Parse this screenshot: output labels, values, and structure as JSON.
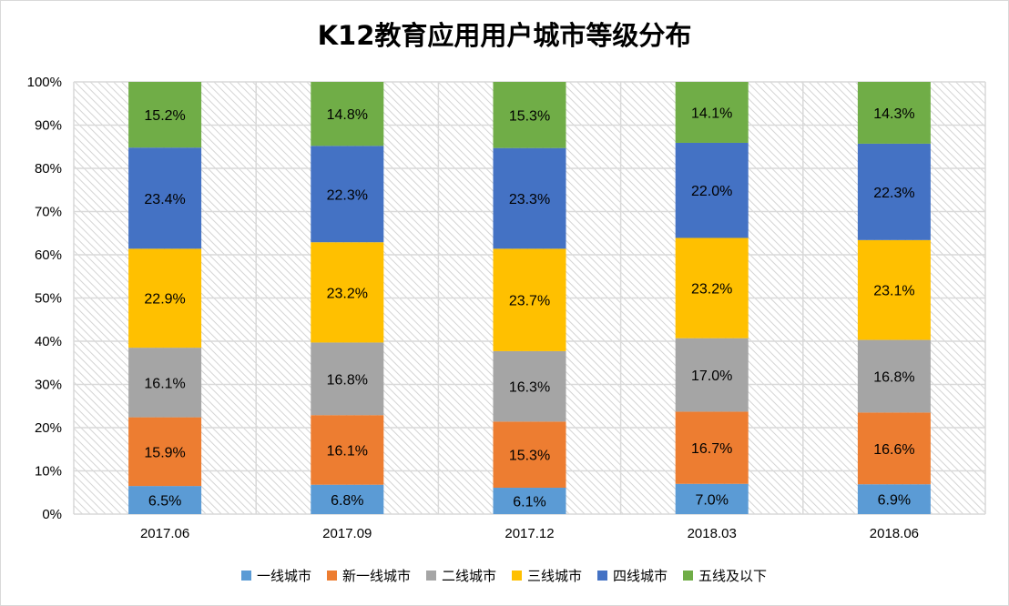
{
  "chart_data": {
    "type": "bar",
    "stacked": true,
    "title": "K12教育应用用户城市等级分布",
    "xlabel": "",
    "ylabel": "",
    "ylim": [
      0,
      100
    ],
    "yticks": [
      "0%",
      "10%",
      "20%",
      "30%",
      "40%",
      "50%",
      "60%",
      "70%",
      "80%",
      "90%",
      "100%"
    ],
    "categories": [
      "2017.06",
      "2017.09",
      "2017.12",
      "2018.03",
      "2018.06"
    ],
    "series": [
      {
        "name": "一线城市",
        "color": "#5b9bd5",
        "values": [
          6.5,
          6.8,
          6.1,
          7.0,
          6.9
        ]
      },
      {
        "name": "新一线城市",
        "color": "#ed7d31",
        "values": [
          15.9,
          16.1,
          15.3,
          16.7,
          16.6
        ]
      },
      {
        "name": "二线城市",
        "color": "#a5a5a5",
        "values": [
          16.1,
          16.8,
          16.3,
          17.0,
          16.8
        ]
      },
      {
        "name": "三线城市",
        "color": "#ffc000",
        "values": [
          22.9,
          23.2,
          23.7,
          23.2,
          23.1
        ]
      },
      {
        "name": "四线城市",
        "color": "#4472c4",
        "values": [
          23.4,
          22.3,
          23.3,
          22.0,
          22.3
        ]
      },
      {
        "name": "五线及以下",
        "color": "#70ad47",
        "values": [
          15.2,
          14.8,
          15.3,
          14.1,
          14.3
        ]
      }
    ],
    "grid": true,
    "legend": "bottom"
  }
}
